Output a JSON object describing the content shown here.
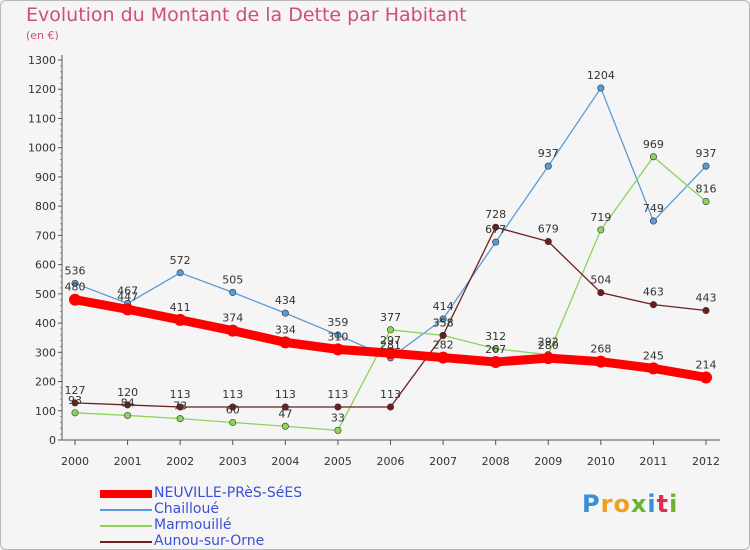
{
  "title": "Evolution du Montant de la Dette par Habitant",
  "subtitle": "(en €)",
  "logo": {
    "text": "Proxiti",
    "letter_colors": [
      "#3a8fd6",
      "#f0a020",
      "#f0a020",
      "#6ab52a",
      "#3a8fd6",
      "#e03050",
      "#6ab52a"
    ]
  },
  "chart_data": {
    "type": "line",
    "title": "Evolution du Montant de la Dette par Habitant",
    "ylabel": "(en €)",
    "xlabel": "",
    "ylim": [
      0,
      1300
    ],
    "yticks": [
      0,
      100,
      200,
      300,
      400,
      500,
      600,
      700,
      800,
      900,
      1000,
      1100,
      1200,
      1300
    ],
    "grid": false,
    "legend_position": "bottom-left",
    "x": [
      "2000",
      "2001",
      "2002",
      "2003",
      "2004",
      "2005",
      "2006",
      "2007",
      "2008",
      "2009",
      "2010",
      "2011",
      "2012"
    ],
    "series": [
      {
        "name": "NEUVILLE-PRèS-SéES",
        "color": "#ff0000",
        "values": [
          480,
          447,
          411,
          374,
          334,
          310,
          297,
          282,
          267,
          280,
          268,
          245,
          214
        ]
      },
      {
        "name": "Chailloué",
        "color": "#5a9bd5",
        "values": [
          536,
          467,
          572,
          505,
          434,
          359,
          281,
          414,
          677,
          937,
          1204,
          749,
          937
        ]
      },
      {
        "name": "Marmouillé",
        "color": "#8cd45a",
        "values": [
          93,
          84,
          73,
          60,
          47,
          33,
          377,
          358,
          312,
          292,
          719,
          969,
          816
        ]
      },
      {
        "name": "Aunou-sur-Orne",
        "color": "#6e1e1e",
        "values": [
          127,
          120,
          113,
          113,
          113,
          113,
          113,
          358,
          728,
          679,
          504,
          463,
          443
        ]
      }
    ]
  }
}
